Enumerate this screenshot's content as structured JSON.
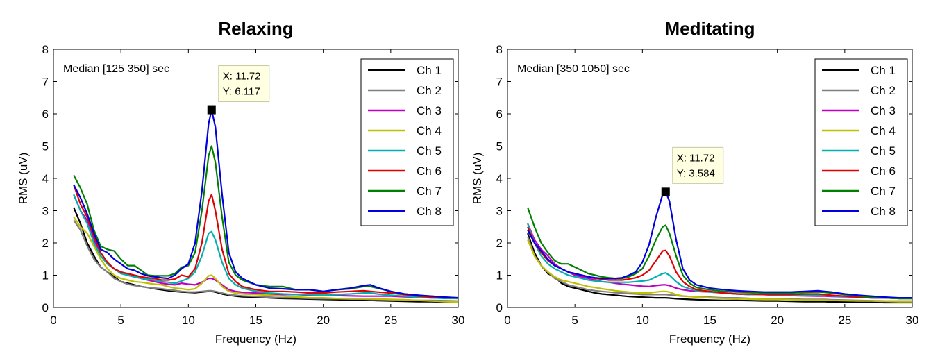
{
  "chart_data": [
    {
      "type": "line",
      "title": "Relaxing",
      "xlabel": "Frequency (Hz)",
      "ylabel": "RMS (uV)",
      "xlim": [
        0,
        30
      ],
      "ylim": [
        0,
        8
      ],
      "xticks": [
        0,
        5,
        10,
        15,
        20,
        25,
        30
      ],
      "yticks": [
        0,
        1,
        2,
        3,
        4,
        5,
        6,
        7,
        8
      ],
      "grid": false,
      "legend_position": "top-right",
      "annotation_text": "Median [125 350] sec",
      "datatip": {
        "x": 11.72,
        "y": 6.117,
        "x_text": "X: 11.72",
        "y_text": "Y: 6.117"
      },
      "x": [
        1.5,
        2,
        2.5,
        3,
        3.5,
        4,
        4.5,
        5,
        5.5,
        6,
        6.5,
        7,
        7.5,
        8,
        8.5,
        9,
        9.5,
        10,
        10.5,
        11,
        11.5,
        11.72,
        12,
        12.5,
        13,
        13.5,
        14,
        15,
        16,
        17,
        18,
        19,
        20,
        21,
        22,
        23,
        23.5,
        24,
        25,
        26,
        27,
        28,
        29,
        30
      ],
      "series": [
        {
          "name": "Ch 1",
          "color": "#000000",
          "values": [
            3.1,
            2.6,
            2.0,
            1.6,
            1.25,
            1.1,
            0.95,
            0.8,
            0.75,
            0.7,
            0.65,
            0.62,
            0.58,
            0.55,
            0.52,
            0.5,
            0.48,
            0.47,
            0.46,
            0.48,
            0.5,
            0.5,
            0.48,
            0.42,
            0.38,
            0.35,
            0.33,
            0.32,
            0.3,
            0.28,
            0.27,
            0.26,
            0.25,
            0.24,
            0.23,
            0.22,
            0.22,
            0.21,
            0.2,
            0.19,
            0.18,
            0.18,
            0.17,
            0.17
          ]
        },
        {
          "name": "Ch 2",
          "color": "#808080",
          "values": [
            2.7,
            2.4,
            1.9,
            1.5,
            1.25,
            1.1,
            0.9,
            0.8,
            0.72,
            0.68,
            0.65,
            0.62,
            0.6,
            0.58,
            0.55,
            0.53,
            0.5,
            0.48,
            0.48,
            0.5,
            0.52,
            0.52,
            0.5,
            0.45,
            0.4,
            0.38,
            0.36,
            0.34,
            0.32,
            0.3,
            0.3,
            0.28,
            0.27,
            0.27,
            0.26,
            0.26,
            0.25,
            0.25,
            0.24,
            0.23,
            0.22,
            0.22,
            0.21,
            0.2
          ]
        },
        {
          "name": "Ch 3",
          "color": "#C000C0",
          "values": [
            3.5,
            3.0,
            2.7,
            2.1,
            1.6,
            1.35,
            1.2,
            1.1,
            1.0,
            0.95,
            0.9,
            0.85,
            0.8,
            0.75,
            0.72,
            0.7,
            0.75,
            0.72,
            0.7,
            0.78,
            0.9,
            0.9,
            0.85,
            0.7,
            0.55,
            0.5,
            0.47,
            0.45,
            0.42,
            0.4,
            0.4,
            0.38,
            0.38,
            0.37,
            0.36,
            0.35,
            0.35,
            0.35,
            0.35,
            0.33,
            0.32,
            0.3,
            0.3,
            0.28
          ]
        },
        {
          "name": "Ch 4",
          "color": "#C0C000",
          "values": [
            2.8,
            2.5,
            2.3,
            1.9,
            1.5,
            1.2,
            1.0,
            0.9,
            0.85,
            0.8,
            0.78,
            0.75,
            0.72,
            0.7,
            0.65,
            0.6,
            0.58,
            0.55,
            0.58,
            0.75,
            0.98,
            1.0,
            0.9,
            0.65,
            0.5,
            0.45,
            0.42,
            0.4,
            0.38,
            0.35,
            0.33,
            0.3,
            0.3,
            0.28,
            0.28,
            0.27,
            0.27,
            0.26,
            0.25,
            0.24,
            0.22,
            0.2,
            0.18,
            0.17
          ]
        },
        {
          "name": "Ch 5",
          "color": "#00B0B0",
          "values": [
            3.5,
            3.0,
            2.6,
            2.0,
            1.6,
            1.35,
            1.2,
            1.05,
            1.0,
            0.95,
            0.9,
            0.88,
            0.85,
            0.8,
            0.78,
            0.75,
            0.82,
            0.9,
            1.1,
            1.6,
            2.3,
            2.35,
            2.1,
            1.4,
            0.9,
            0.7,
            0.6,
            0.5,
            0.45,
            0.42,
            0.4,
            0.4,
            0.38,
            0.4,
            0.42,
            0.45,
            0.45,
            0.42,
            0.38,
            0.35,
            0.32,
            0.3,
            0.28,
            0.28
          ]
        },
        {
          "name": "Ch 6",
          "color": "#E00000",
          "values": [
            3.8,
            3.2,
            2.8,
            2.2,
            1.7,
            1.4,
            1.2,
            1.1,
            1.05,
            1.0,
            0.95,
            0.92,
            0.9,
            0.85,
            0.85,
            0.88,
            1.0,
            0.95,
            1.2,
            2.0,
            3.3,
            3.5,
            3.0,
            1.8,
            1.05,
            0.8,
            0.65,
            0.55,
            0.5,
            0.5,
            0.48,
            0.45,
            0.45,
            0.48,
            0.5,
            0.52,
            0.5,
            0.48,
            0.45,
            0.4,
            0.35,
            0.32,
            0.3,
            0.3
          ]
        },
        {
          "name": "Ch 7",
          "color": "#008000",
          "values": [
            4.1,
            3.7,
            3.2,
            2.4,
            1.9,
            1.8,
            1.75,
            1.5,
            1.3,
            1.3,
            1.15,
            1.0,
            0.98,
            0.98,
            0.98,
            1.05,
            1.25,
            1.3,
            1.7,
            3.0,
            4.7,
            5.0,
            4.5,
            2.8,
            1.4,
            1.0,
            0.85,
            0.7,
            0.65,
            0.65,
            0.55,
            0.55,
            0.5,
            0.55,
            0.58,
            0.65,
            0.65,
            0.6,
            0.5,
            0.42,
            0.38,
            0.35,
            0.32,
            0.3
          ]
        },
        {
          "name": "Ch 8",
          "color": "#0000E0",
          "values": [
            3.8,
            3.4,
            2.9,
            2.3,
            1.8,
            1.7,
            1.5,
            1.35,
            1.2,
            1.15,
            1.05,
            0.98,
            0.95,
            0.92,
            0.9,
            1.0,
            1.2,
            1.35,
            2.0,
            3.6,
            5.7,
            6.117,
            5.6,
            3.5,
            1.7,
            1.1,
            0.9,
            0.7,
            0.6,
            0.58,
            0.55,
            0.55,
            0.5,
            0.55,
            0.6,
            0.68,
            0.7,
            0.62,
            0.5,
            0.42,
            0.38,
            0.35,
            0.32,
            0.3
          ]
        }
      ]
    },
    {
      "type": "line",
      "title": "Meditating",
      "xlabel": "Frequency (Hz)",
      "ylabel": "RMS (uV)",
      "xlim": [
        0,
        30
      ],
      "ylim": [
        0,
        8
      ],
      "xticks": [
        0,
        5,
        10,
        15,
        20,
        25,
        30
      ],
      "yticks": [
        0,
        1,
        2,
        3,
        4,
        5,
        6,
        7,
        8
      ],
      "grid": false,
      "legend_position": "top-right",
      "annotation_text": "Median [350 1050] sec",
      "datatip": {
        "x": 11.72,
        "y": 3.584,
        "x_text": "X: 11.72",
        "y_text": "Y: 3.584"
      },
      "x": [
        1.5,
        2,
        2.5,
        3,
        3.5,
        4,
        4.5,
        5,
        5.5,
        6,
        6.5,
        7,
        7.5,
        8,
        8.5,
        9,
        9.5,
        10,
        10.5,
        11,
        11.5,
        11.72,
        12,
        12.5,
        13,
        13.5,
        14,
        15,
        16,
        17,
        18,
        19,
        20,
        21,
        22,
        23,
        23.5,
        24,
        25,
        26,
        27,
        28,
        29,
        30
      ],
      "series": [
        {
          "name": "Ch 1",
          "color": "#000000",
          "values": [
            2.3,
            1.7,
            1.3,
            1.05,
            0.95,
            0.75,
            0.65,
            0.6,
            0.55,
            0.5,
            0.45,
            0.42,
            0.4,
            0.38,
            0.36,
            0.34,
            0.33,
            0.32,
            0.31,
            0.3,
            0.3,
            0.3,
            0.29,
            0.27,
            0.26,
            0.25,
            0.24,
            0.23,
            0.22,
            0.22,
            0.21,
            0.2,
            0.2,
            0.19,
            0.18,
            0.18,
            0.18,
            0.17,
            0.17,
            0.16,
            0.16,
            0.15,
            0.15,
            0.15
          ]
        },
        {
          "name": "Ch 2",
          "color": "#808080",
          "values": [
            2.2,
            1.6,
            1.3,
            1.1,
            0.9,
            0.8,
            0.7,
            0.65,
            0.6,
            0.55,
            0.52,
            0.5,
            0.48,
            0.46,
            0.45,
            0.43,
            0.42,
            0.4,
            0.4,
            0.4,
            0.4,
            0.4,
            0.39,
            0.37,
            0.35,
            0.34,
            0.33,
            0.32,
            0.3,
            0.3,
            0.28,
            0.27,
            0.27,
            0.26,
            0.25,
            0.25,
            0.25,
            0.24,
            0.23,
            0.22,
            0.21,
            0.2,
            0.2,
            0.2
          ]
        },
        {
          "name": "Ch 3",
          "color": "#C000C0",
          "values": [
            2.6,
            2.1,
            1.8,
            1.6,
            1.35,
            1.2,
            1.1,
            1.0,
            0.95,
            0.9,
            0.85,
            0.8,
            0.78,
            0.75,
            0.72,
            0.7,
            0.68,
            0.66,
            0.65,
            0.68,
            0.7,
            0.7,
            0.68,
            0.6,
            0.55,
            0.52,
            0.5,
            0.48,
            0.45,
            0.42,
            0.4,
            0.4,
            0.38,
            0.37,
            0.36,
            0.35,
            0.35,
            0.34,
            0.33,
            0.32,
            0.3,
            0.3,
            0.28,
            0.28
          ]
        },
        {
          "name": "Ch 4",
          "color": "#C0C000",
          "values": [
            2.1,
            1.6,
            1.3,
            1.1,
            0.95,
            0.85,
            0.8,
            0.75,
            0.7,
            0.65,
            0.62,
            0.58,
            0.55,
            0.52,
            0.5,
            0.48,
            0.46,
            0.45,
            0.45,
            0.48,
            0.5,
            0.5,
            0.48,
            0.4,
            0.36,
            0.34,
            0.32,
            0.3,
            0.28,
            0.27,
            0.26,
            0.25,
            0.25,
            0.24,
            0.23,
            0.23,
            0.23,
            0.22,
            0.21,
            0.2,
            0.2,
            0.19,
            0.18,
            0.18
          ]
        },
        {
          "name": "Ch 5",
          "color": "#00B0B0",
          "values": [
            2.6,
            2.0,
            1.6,
            1.35,
            1.2,
            1.1,
            1.0,
            0.95,
            0.9,
            0.85,
            0.82,
            0.8,
            0.78,
            0.78,
            0.78,
            0.78,
            0.8,
            0.82,
            0.85,
            0.95,
            1.05,
            1.07,
            1.0,
            0.8,
            0.65,
            0.58,
            0.52,
            0.48,
            0.45,
            0.42,
            0.4,
            0.4,
            0.38,
            0.38,
            0.38,
            0.38,
            0.37,
            0.36,
            0.34,
            0.32,
            0.3,
            0.3,
            0.28,
            0.28
          ]
        },
        {
          "name": "Ch 6",
          "color": "#E00000",
          "values": [
            2.5,
            2.0,
            1.7,
            1.45,
            1.3,
            1.2,
            1.1,
            1.05,
            1.0,
            0.95,
            0.9,
            0.88,
            0.85,
            0.85,
            0.85,
            0.88,
            0.92,
            1.0,
            1.15,
            1.45,
            1.75,
            1.77,
            1.6,
            1.1,
            0.8,
            0.65,
            0.55,
            0.5,
            0.45,
            0.42,
            0.42,
            0.4,
            0.4,
            0.4,
            0.42,
            0.42,
            0.4,
            0.38,
            0.35,
            0.32,
            0.3,
            0.3,
            0.28,
            0.28
          ]
        },
        {
          "name": "Ch 7",
          "color": "#008000",
          "values": [
            3.1,
            2.5,
            2.0,
            1.7,
            1.45,
            1.35,
            1.35,
            1.25,
            1.15,
            1.05,
            1.0,
            0.95,
            0.92,
            0.9,
            0.9,
            0.95,
            1.05,
            1.2,
            1.6,
            2.1,
            2.5,
            2.55,
            2.3,
            1.6,
            1.0,
            0.75,
            0.62,
            0.55,
            0.5,
            0.48,
            0.47,
            0.45,
            0.45,
            0.45,
            0.47,
            0.48,
            0.47,
            0.45,
            0.4,
            0.35,
            0.32,
            0.3,
            0.28,
            0.28
          ]
        },
        {
          "name": "Ch 8",
          "color": "#0000E0",
          "values": [
            2.4,
            2.0,
            1.75,
            1.5,
            1.3,
            1.2,
            1.1,
            1.05,
            1.0,
            0.95,
            0.92,
            0.9,
            0.9,
            0.9,
            0.92,
            1.0,
            1.1,
            1.4,
            1.95,
            2.8,
            3.5,
            3.584,
            3.3,
            2.1,
            1.2,
            0.85,
            0.7,
            0.6,
            0.55,
            0.52,
            0.5,
            0.48,
            0.48,
            0.48,
            0.5,
            0.52,
            0.5,
            0.48,
            0.42,
            0.38,
            0.35,
            0.32,
            0.3,
            0.3
          ]
        }
      ]
    }
  ]
}
